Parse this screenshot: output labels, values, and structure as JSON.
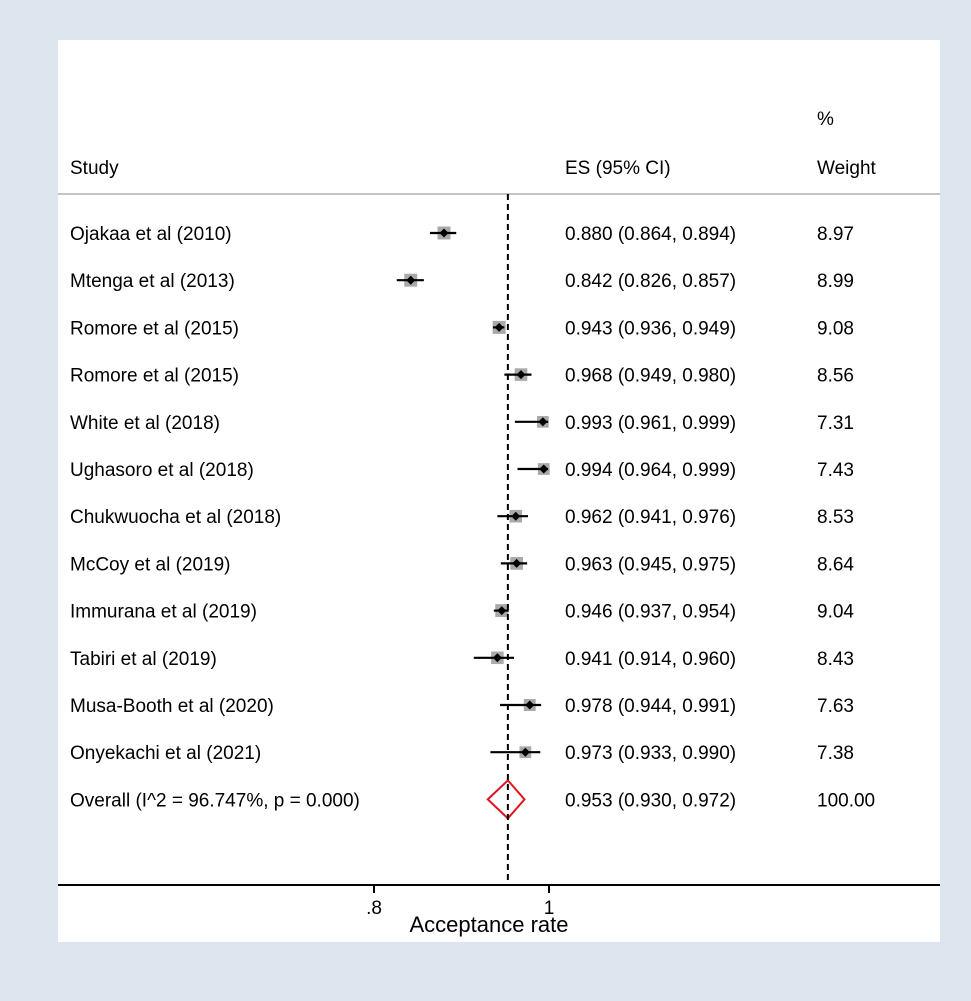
{
  "chart_data": {
    "type": "forest",
    "columns": {
      "study": "Study",
      "es": "ES (95% CI)",
      "weight_line1": "%",
      "weight_line2": "Weight"
    },
    "studies": [
      {
        "label": "Ojakaa et al (2010)",
        "es": 0.88,
        "lo": 0.864,
        "hi": 0.894,
        "es_text": "0.880 (0.864, 0.894)",
        "weight": 8.97,
        "weight_text": "8.97"
      },
      {
        "label": "Mtenga et al  (2013)",
        "es": 0.842,
        "lo": 0.826,
        "hi": 0.857,
        "es_text": "0.842 (0.826, 0.857)",
        "weight": 8.99,
        "weight_text": "8.99"
      },
      {
        "label": "Romore et al  (2015)",
        "es": 0.943,
        "lo": 0.936,
        "hi": 0.949,
        "es_text": "0.943 (0.936, 0.949)",
        "weight": 9.08,
        "weight_text": "9.08"
      },
      {
        "label": "Romore et al (2015)",
        "es": 0.968,
        "lo": 0.949,
        "hi": 0.98,
        "es_text": "0.968 (0.949, 0.980)",
        "weight": 8.56,
        "weight_text": "8.56"
      },
      {
        "label": "White et al  (2018)",
        "es": 0.993,
        "lo": 0.961,
        "hi": 0.999,
        "es_text": "0.993 (0.961, 0.999)",
        "weight": 7.31,
        "weight_text": "7.31"
      },
      {
        "label": "Ughasoro et al  (2018)",
        "es": 0.994,
        "lo": 0.964,
        "hi": 0.999,
        "es_text": "0.994 (0.964, 0.999)",
        "weight": 7.43,
        "weight_text": "7.43"
      },
      {
        "label": "Chukwuocha et al  (2018)",
        "es": 0.962,
        "lo": 0.941,
        "hi": 0.976,
        "es_text": "0.962 (0.941, 0.976)",
        "weight": 8.53,
        "weight_text": "8.53"
      },
      {
        "label": "McCoy et al (2019)",
        "es": 0.963,
        "lo": 0.945,
        "hi": 0.975,
        "es_text": "0.963 (0.945, 0.975)",
        "weight": 8.64,
        "weight_text": "8.64"
      },
      {
        "label": "Immurana et al  (2019)",
        "es": 0.946,
        "lo": 0.937,
        "hi": 0.954,
        "es_text": "0.946 (0.937, 0.954)",
        "weight": 9.04,
        "weight_text": "9.04"
      },
      {
        "label": "Tabiri et al  (2019)",
        "es": 0.941,
        "lo": 0.914,
        "hi": 0.96,
        "es_text": "0.941 (0.914, 0.960)",
        "weight": 8.43,
        "weight_text": "8.43"
      },
      {
        "label": "Musa-Booth et al  (2020)",
        "es": 0.978,
        "lo": 0.944,
        "hi": 0.991,
        "es_text": "0.978 (0.944, 0.991)",
        "weight": 7.63,
        "weight_text": "7.63"
      },
      {
        "label": "Onyekachi et al  (2021)",
        "es": 0.973,
        "lo": 0.933,
        "hi": 0.99,
        "es_text": "0.973 (0.933, 0.990)",
        "weight": 7.38,
        "weight_text": "7.38"
      }
    ],
    "overall": {
      "label": "Overall  (I^2 = 96.747%, p = 0.000)",
      "es": 0.953,
      "lo": 0.93,
      "hi": 0.972,
      "es_text": "0.953 (0.930, 0.972)",
      "weight": 100.0,
      "weight_text": "100.00"
    },
    "xaxis": {
      "title": "Acceptance rate",
      "ticks": [
        0.8,
        1
      ],
      "tick_labels": [
        ".8",
        "1"
      ]
    },
    "reference_line": 0.953,
    "colors": {
      "background": "#dde6ee",
      "panel": "#ffffff",
      "marker": "#000000",
      "weight_box": "#a9a9a9",
      "overall_diamond": "#e0141e",
      "separator": "#b0b0b0"
    }
  }
}
